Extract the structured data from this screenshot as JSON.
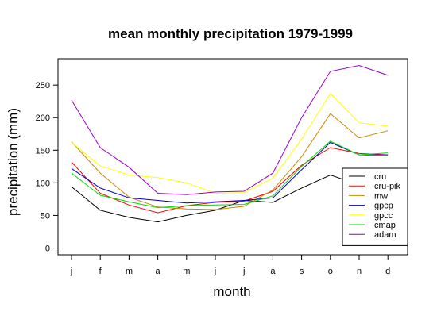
{
  "chart_data": {
    "type": "line",
    "title": "mean monthly precipitation 1979-1999",
    "xlabel": "month",
    "ylabel": "precipitation (mm)",
    "categories": [
      "j",
      "f",
      "m",
      "a",
      "m",
      "j",
      "j",
      "a",
      "s",
      "o",
      "n",
      "d"
    ],
    "ylim": [
      -8,
      292
    ],
    "yticks": [
      0,
      50,
      100,
      150,
      200,
      250
    ],
    "grid": false,
    "legend_position": "bottom-right",
    "series": [
      {
        "name": "cru",
        "color": "#000000",
        "values": [
          94,
          58,
          47,
          40,
          50,
          58,
          73,
          70,
          92,
          112,
          97,
          100
        ]
      },
      {
        "name": "cru-pik",
        "color": "#ff0000",
        "values": [
          132,
          84,
          66,
          54,
          65,
          70,
          72,
          87,
          127,
          154,
          145,
          143
        ]
      },
      {
        "name": "mw",
        "color": "#cc8800",
        "values": [
          163,
          115,
          78,
          63,
          60,
          59,
          64,
          89,
          140,
          206,
          169,
          180
        ]
      },
      {
        "name": "gpcp",
        "color": "#0000cc",
        "values": [
          122,
          92,
          77,
          73,
          69,
          71,
          73,
          77,
          120,
          162,
          143,
          143
        ]
      },
      {
        "name": "gpcc",
        "color": "#ffff00",
        "values": [
          162,
          126,
          112,
          108,
          100,
          84,
          85,
          107,
          167,
          237,
          192,
          187
        ]
      },
      {
        "name": "cmap",
        "color": "#00dd00",
        "values": [
          115,
          81,
          71,
          62,
          65,
          66,
          67,
          80,
          125,
          164,
          143,
          146
        ]
      },
      {
        "name": "adam",
        "color": "#9900cc",
        "values": [
          227,
          154,
          124,
          84,
          82,
          86,
          87,
          115,
          200,
          271,
          280,
          265
        ]
      }
    ]
  }
}
